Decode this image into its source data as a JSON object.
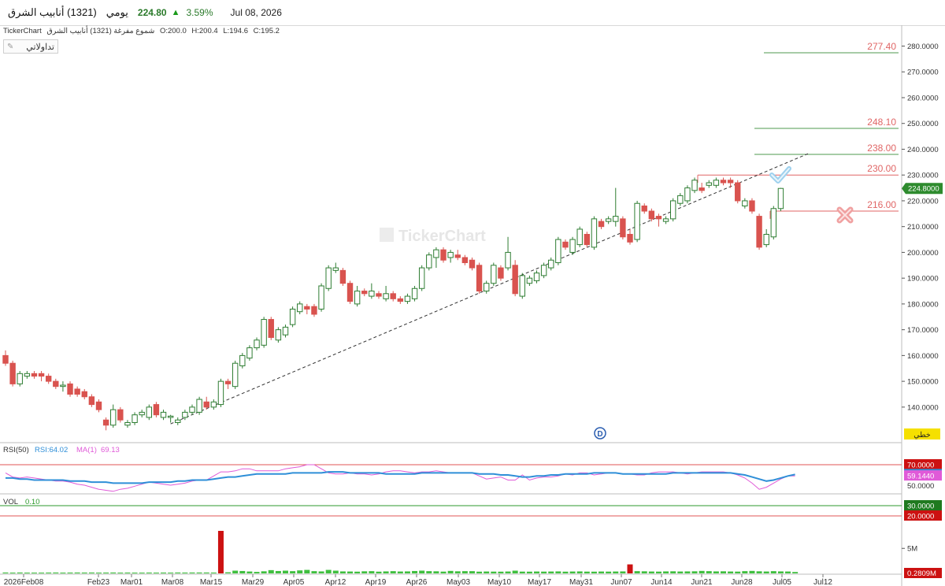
{
  "header": {
    "stock_name": "أنابيب الشرق",
    "stock_code": "(1321)",
    "period": "يومي",
    "last_price": "224.80",
    "change_pct": "3.59%",
    "date": "Jul 08, 2026"
  },
  "info_bar": {
    "source": "TickerChart",
    "series_name": "شموع مفرغة (1321) أنابيب الشرق",
    "open": "O:200.0",
    "high": "H:200.4",
    "low": "L:194.6",
    "close": "C:195.2"
  },
  "tab": {
    "label": "تداولاتي"
  },
  "watermark": "TickerChart",
  "dividend_marker": "D",
  "icons": [
    "check-icon",
    "cross-icon",
    "pin-icon",
    "up-arrow-icon"
  ],
  "colors": {
    "up_candle": "#2e7d32",
    "down_candle": "#d9534f",
    "level_red": "#e06666",
    "level_green": "#4f9a4f",
    "rsi_line": "#2f8fd8",
    "rsi_ma": "#e05ad8",
    "vol_up": "#3fbf3f",
    "vol_down": "#cc1111"
  },
  "chart_data": [
    {
      "type": "candlestick",
      "price_axis": {
        "ylim": [
          131,
          283
        ],
        "ticks": [
          "140.0000",
          "150.0000",
          "160.0000",
          "170.0000",
          "180.0000",
          "190.0000",
          "200.0000",
          "210.0000",
          "220.0000",
          "230.0000",
          "240.0000",
          "250.0000",
          "260.0000",
          "270.0000",
          "280.0000"
        ],
        "last_price_tag": "224.8000"
      },
      "date_ticks": [
        "2026Feb08",
        "Feb23",
        "Mar01",
        "Mar08",
        "Mar15",
        "Mar29",
        "Apr05",
        "Apr12",
        "Apr19",
        "Apr26",
        "May03",
        "May10",
        "May17",
        "May31",
        "Jun07",
        "Jun14",
        "Jun21",
        "Jun28",
        "Jul05",
        "Jul12"
      ],
      "candles": [
        {
          "o": 160,
          "c": 157,
          "h": 162,
          "l": 156
        },
        {
          "o": 157,
          "c": 149,
          "h": 158,
          "l": 148
        },
        {
          "o": 149,
          "c": 153,
          "h": 154,
          "l": 148
        },
        {
          "o": 152,
          "c": 153,
          "h": 154,
          "l": 151
        },
        {
          "o": 153,
          "c": 152,
          "h": 154,
          "l": 151
        },
        {
          "o": 153,
          "c": 152,
          "h": 154,
          "l": 150
        },
        {
          "o": 152,
          "c": 150,
          "h": 153,
          "l": 149
        },
        {
          "o": 150,
          "c": 148,
          "h": 151,
          "l": 147
        },
        {
          "o": 148,
          "c": 148.5,
          "h": 150,
          "l": 146
        },
        {
          "o": 149,
          "c": 145,
          "h": 150,
          "l": 144
        },
        {
          "o": 147,
          "c": 145,
          "h": 148,
          "l": 144
        },
        {
          "o": 146,
          "c": 144,
          "h": 147,
          "l": 143
        },
        {
          "o": 144,
          "c": 141,
          "h": 145,
          "l": 140
        },
        {
          "o": 142,
          "c": 139,
          "h": 143,
          "l": 138
        },
        {
          "o": 135,
          "c": 133,
          "h": 136,
          "l": 131
        },
        {
          "o": 133,
          "c": 139,
          "h": 141,
          "l": 132
        },
        {
          "o": 139,
          "c": 135,
          "h": 140,
          "l": 134
        },
        {
          "o": 133,
          "c": 134,
          "h": 135,
          "l": 132
        },
        {
          "o": 134,
          "c": 137,
          "h": 138,
          "l": 133
        },
        {
          "o": 137,
          "c": 138,
          "h": 139,
          "l": 136
        },
        {
          "o": 136,
          "c": 140,
          "h": 141,
          "l": 135
        },
        {
          "o": 141,
          "c": 137,
          "h": 142,
          "l": 136
        },
        {
          "o": 136,
          "c": 138,
          "h": 139,
          "l": 135
        },
        {
          "o": 136,
          "c": 136.5,
          "h": 137,
          "l": 134
        },
        {
          "o": 134,
          "c": 135,
          "h": 136,
          "l": 133
        },
        {
          "o": 136,
          "c": 138,
          "h": 139,
          "l": 135
        },
        {
          "o": 138,
          "c": 140,
          "h": 141,
          "l": 137
        },
        {
          "o": 138,
          "c": 143,
          "h": 144,
          "l": 137
        },
        {
          "o": 142,
          "c": 140,
          "h": 144,
          "l": 139
        },
        {
          "o": 140,
          "c": 142,
          "h": 143,
          "l": 139
        },
        {
          "o": 141,
          "c": 150,
          "h": 151,
          "l": 140
        },
        {
          "o": 150,
          "c": 149,
          "h": 151,
          "l": 147
        },
        {
          "o": 148,
          "c": 157,
          "h": 158,
          "l": 147
        },
        {
          "o": 156,
          "c": 160,
          "h": 161,
          "l": 155
        },
        {
          "o": 159,
          "c": 163,
          "h": 164,
          "l": 158
        },
        {
          "o": 163,
          "c": 166,
          "h": 167,
          "l": 162
        },
        {
          "o": 164,
          "c": 174,
          "h": 175,
          "l": 163
        },
        {
          "o": 174,
          "c": 167,
          "h": 175,
          "l": 166
        },
        {
          "o": 166,
          "c": 170,
          "h": 171,
          "l": 165
        },
        {
          "o": 168,
          "c": 171,
          "h": 172,
          "l": 167
        },
        {
          "o": 172,
          "c": 178,
          "h": 179,
          "l": 171
        },
        {
          "o": 177,
          "c": 180,
          "h": 181,
          "l": 176
        },
        {
          "o": 179,
          "c": 178,
          "h": 180,
          "l": 176
        },
        {
          "o": 179,
          "c": 176,
          "h": 180,
          "l": 175
        },
        {
          "o": 178,
          "c": 187,
          "h": 188,
          "l": 177
        },
        {
          "o": 186,
          "c": 194,
          "h": 195,
          "l": 185
        },
        {
          "o": 193,
          "c": 194,
          "h": 196,
          "l": 192
        },
        {
          "o": 193,
          "c": 188,
          "h": 194,
          "l": 187
        },
        {
          "o": 188,
          "c": 181,
          "h": 189,
          "l": 180
        },
        {
          "o": 180,
          "c": 185,
          "h": 187,
          "l": 179
        },
        {
          "o": 185,
          "c": 184,
          "h": 186,
          "l": 183
        },
        {
          "o": 183,
          "c": 185,
          "h": 188,
          "l": 182
        },
        {
          "o": 184,
          "c": 183,
          "h": 185,
          "l": 182
        },
        {
          "o": 182,
          "c": 184,
          "h": 187,
          "l": 181
        },
        {
          "o": 184,
          "c": 182,
          "h": 185,
          "l": 181
        },
        {
          "o": 182,
          "c": 181,
          "h": 183,
          "l": 180
        },
        {
          "o": 181,
          "c": 183,
          "h": 184,
          "l": 180
        },
        {
          "o": 182,
          "c": 186,
          "h": 187,
          "l": 181
        },
        {
          "o": 186,
          "c": 194,
          "h": 195,
          "l": 185
        },
        {
          "o": 194,
          "c": 199,
          "h": 200,
          "l": 193
        },
        {
          "o": 198,
          "c": 201,
          "h": 202,
          "l": 194
        },
        {
          "o": 201,
          "c": 197,
          "h": 202,
          "l": 196
        },
        {
          "o": 198,
          "c": 200,
          "h": 201,
          "l": 196
        },
        {
          "o": 199,
          "c": 198,
          "h": 201,
          "l": 197
        },
        {
          "o": 198,
          "c": 196,
          "h": 199,
          "l": 195
        },
        {
          "o": 197,
          "c": 194,
          "h": 198,
          "l": 193
        },
        {
          "o": 195,
          "c": 185,
          "h": 196,
          "l": 184
        },
        {
          "o": 185,
          "c": 188,
          "h": 189,
          "l": 184
        },
        {
          "o": 188,
          "c": 195,
          "h": 196,
          "l": 187
        },
        {
          "o": 194,
          "c": 190,
          "h": 195,
          "l": 189
        },
        {
          "o": 194,
          "c": 200,
          "h": 206,
          "l": 193
        },
        {
          "o": 195,
          "c": 184,
          "h": 197,
          "l": 183
        },
        {
          "o": 183,
          "c": 191,
          "h": 192,
          "l": 182
        },
        {
          "o": 188,
          "c": 190,
          "h": 191,
          "l": 187
        },
        {
          "o": 189,
          "c": 192,
          "h": 193,
          "l": 188
        },
        {
          "o": 191,
          "c": 195,
          "h": 196,
          "l": 190
        },
        {
          "o": 194,
          "c": 197,
          "h": 198,
          "l": 193
        },
        {
          "o": 196,
          "c": 205,
          "h": 206,
          "l": 195
        },
        {
          "o": 204,
          "c": 202,
          "h": 205,
          "l": 201
        },
        {
          "o": 200,
          "c": 205,
          "h": 206,
          "l": 199
        },
        {
          "o": 203,
          "c": 209,
          "h": 210,
          "l": 202
        },
        {
          "o": 207,
          "c": 203,
          "h": 208,
          "l": 202
        },
        {
          "o": 202,
          "c": 213,
          "h": 214,
          "l": 201
        },
        {
          "o": 212,
          "c": 210,
          "h": 213,
          "l": 209
        },
        {
          "o": 212,
          "c": 213,
          "h": 214,
          "l": 211
        },
        {
          "o": 212,
          "c": 214,
          "h": 225,
          "l": 210
        },
        {
          "o": 213,
          "c": 206,
          "h": 214,
          "l": 205
        },
        {
          "o": 207,
          "c": 204,
          "h": 209,
          "l": 203
        },
        {
          "o": 205,
          "c": 219,
          "h": 220,
          "l": 204
        },
        {
          "o": 218,
          "c": 216,
          "h": 219,
          "l": 215
        },
        {
          "o": 216,
          "c": 213,
          "h": 217,
          "l": 212
        },
        {
          "o": 214,
          "c": 213,
          "h": 215,
          "l": 210
        },
        {
          "o": 212,
          "c": 213,
          "h": 214,
          "l": 211
        },
        {
          "o": 213,
          "c": 220,
          "h": 221,
          "l": 212
        },
        {
          "o": 219,
          "c": 222,
          "h": 223,
          "l": 218
        },
        {
          "o": 220,
          "c": 225,
          "h": 226,
          "l": 219
        },
        {
          "o": 224,
          "c": 228,
          "h": 229,
          "l": 223
        },
        {
          "o": 225,
          "c": 224,
          "h": 227,
          "l": 223
        },
        {
          "o": 226,
          "c": 227,
          "h": 228,
          "l": 225
        },
        {
          "o": 226,
          "c": 228,
          "h": 229,
          "l": 225
        },
        {
          "o": 228,
          "c": 227,
          "h": 229,
          "l": 226
        },
        {
          "o": 228,
          "c": 227,
          "h": 229,
          "l": 225
        },
        {
          "o": 227,
          "c": 220,
          "h": 228,
          "l": 219
        },
        {
          "o": 218,
          "c": 220,
          "h": 221,
          "l": 217
        },
        {
          "o": 220,
          "c": 216,
          "h": 221,
          "l": 215
        },
        {
          "o": 214,
          "c": 202,
          "h": 215,
          "l": 201
        },
        {
          "o": 203,
          "c": 207,
          "h": 209,
          "l": 202
        },
        {
          "o": 206,
          "c": 217,
          "h": 218,
          "l": 205
        },
        {
          "o": 217,
          "c": 224.8,
          "h": 225,
          "l": 216
        }
      ],
      "levels": [
        {
          "value": 277.4,
          "label": "277.40",
          "color": "green"
        },
        {
          "value": 248.1,
          "label": "248.10",
          "color": "green"
        },
        {
          "value": 238.0,
          "label": "238.00",
          "color": "green"
        },
        {
          "value": 230.0,
          "label": "230.00",
          "color": "red"
        },
        {
          "value": 216.0,
          "label": "216.00",
          "color": "red"
        }
      ],
      "trendline": {
        "from": {
          "candle": 23,
          "price": 133.5
        },
        "to": {
          "candle": 112,
          "price": 238.5
        },
        "style": "dashed"
      },
      "bottom_tag": "خطي"
    },
    {
      "type": "line",
      "title": "RSI(50)",
      "legend": [
        {
          "name": "RSI:64.02",
          "color": "rsi"
        },
        {
          "name": "MA(1)",
          "color": "ma"
        },
        {
          "name": "69.13",
          "color": "ma"
        }
      ],
      "ylim": [
        17,
        74
      ],
      "hlines": [
        {
          "value": 70,
          "label": "70.0000",
          "color": "red"
        },
        {
          "value": 30,
          "label": "30.0000",
          "color": "green"
        },
        {
          "value": 20,
          "label": "20.0000",
          "color": "red"
        }
      ],
      "right_tags": [
        {
          "value": 60.5245,
          "label": "60.5245",
          "color": "rsi"
        },
        {
          "value": 59.144,
          "label": "59.1440",
          "color": "ma"
        }
      ],
      "axis_tick": "50.0000",
      "rsi": [
        57,
        57,
        56,
        56,
        55,
        55,
        55,
        55,
        55,
        54,
        54,
        54,
        53,
        53,
        53,
        52,
        52,
        52,
        52,
        52,
        53,
        53,
        53,
        53,
        54,
        54,
        55,
        55,
        55,
        56,
        57,
        58,
        58,
        59,
        60,
        61,
        61,
        61,
        61,
        61,
        62,
        62,
        62,
        62,
        62,
        63,
        63,
        63,
        62,
        62,
        62,
        62,
        62,
        61,
        61,
        61,
        61,
        61,
        62,
        62,
        62,
        62,
        62,
        62,
        62,
        62,
        61,
        61,
        61,
        60,
        60,
        59,
        58,
        58,
        59,
        59,
        60,
        60,
        61,
        61,
        61,
        61,
        62,
        62,
        62,
        62,
        61,
        61,
        61,
        61,
        61,
        61,
        61,
        62,
        62,
        62,
        62,
        62,
        62,
        62,
        62,
        62,
        61,
        60,
        58,
        56,
        54,
        55,
        57,
        59,
        60.5
      ],
      "ma": [
        62,
        58,
        57,
        58,
        57,
        56,
        55,
        54,
        54,
        53,
        51,
        50,
        48,
        46,
        45,
        44,
        46,
        47,
        49,
        51,
        53,
        52,
        51,
        50,
        51,
        52,
        54,
        55,
        55,
        59,
        63,
        63,
        64,
        66,
        66,
        64,
        64,
        64,
        64,
        66,
        67,
        68,
        70,
        70,
        66,
        62,
        61,
        61,
        62,
        61,
        61,
        60,
        61,
        63,
        64,
        64,
        63,
        62,
        63,
        63,
        64,
        63,
        62,
        62,
        62,
        62,
        59,
        56,
        57,
        58,
        55,
        55,
        60,
        55,
        57,
        58,
        58,
        59,
        61,
        60,
        62,
        62,
        60,
        61,
        62,
        62,
        61,
        61,
        60,
        60,
        62,
        63,
        63,
        63,
        62,
        61,
        62,
        63,
        63,
        63,
        63,
        62,
        60,
        57,
        52,
        46,
        48,
        52,
        56,
        59,
        59.1
      ]
    },
    {
      "type": "bar",
      "title": "VOL",
      "legend_value": "0.10",
      "axis_tick": "5M",
      "last_tag": "0.2809M",
      "values": [
        0.18,
        0.16,
        0.18,
        0.16,
        0.16,
        0.16,
        0.17,
        0.18,
        0.16,
        0.17,
        0.18,
        0.17,
        0.18,
        0.16,
        0.17,
        0.18,
        0.16,
        0.17,
        0.16,
        0.16,
        0.17,
        0.16,
        0.17,
        0.16,
        0.18,
        0.17,
        0.18,
        0.18,
        0.18,
        0.17,
        8.5,
        0.22,
        0.55,
        0.48,
        0.38,
        0.3,
        0.42,
        0.65,
        0.48,
        0.55,
        0.45,
        0.6,
        0.7,
        0.45,
        0.4,
        0.7,
        0.55,
        0.4,
        0.38,
        0.35,
        0.42,
        0.45,
        0.35,
        0.4,
        0.45,
        0.38,
        0.4,
        0.48,
        0.55,
        0.45,
        0.42,
        0.36,
        0.5,
        0.42,
        0.45,
        0.45,
        0.35,
        0.38,
        0.36,
        0.35,
        0.38,
        0.55,
        0.36,
        0.35,
        0.38,
        0.36,
        0.38,
        0.4,
        0.35,
        0.38,
        0.4,
        0.36,
        0.35,
        0.38,
        0.36,
        0.38,
        0.4,
        1.8,
        0.45,
        0.42,
        0.38,
        0.36,
        0.4,
        0.42,
        0.38,
        0.4,
        0.42,
        0.5,
        0.45,
        0.4,
        0.42,
        0.38,
        0.36,
        0.45,
        0.5,
        0.42,
        0.38,
        0.45,
        0.4,
        0.38,
        0.28
      ],
      "max": 9.5
    }
  ]
}
